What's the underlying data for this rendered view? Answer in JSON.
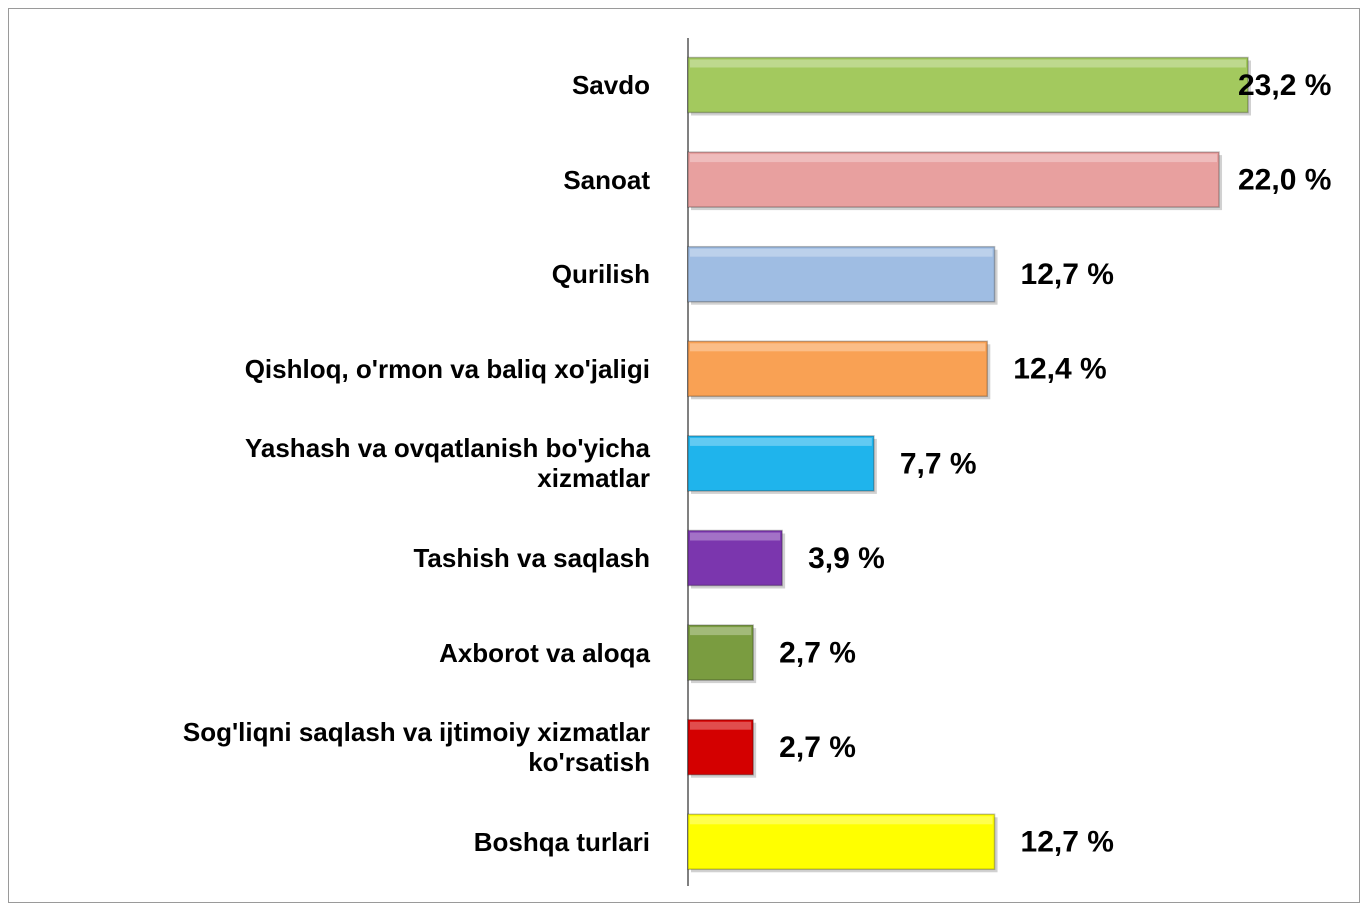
{
  "chart_data": {
    "type": "bar",
    "orientation": "horizontal",
    "categories": [
      "Savdo",
      "Sanoat",
      "Qurilish",
      "Qishloq, o'rmon va baliq xo'jaligi",
      "Yashash va ovqatlanish bo'yicha\nxizmatlar",
      "Tashish va saqlash",
      "Axborot va aloqa",
      "Sog'liqni saqlash va ijtimoiy xizmatlar\nko'rsatish",
      "Boshqa turlari"
    ],
    "values": [
      23.2,
      22.0,
      12.7,
      12.4,
      7.7,
      3.9,
      2.7,
      2.7,
      12.7
    ],
    "value_labels": [
      "23,2 %",
      "22,0 %",
      "12,7 %",
      "12,4 %",
      "7,7 %",
      "3,9 %",
      "2,7 %",
      "2,7 %",
      "12,7 %"
    ],
    "colors": [
      "#a3c95e",
      "#e8a09f",
      "#9fbde3",
      "#f9a154",
      "#1fb4ec",
      "#7b36ae",
      "#7a9c40",
      "#d40000",
      "#ffff00"
    ]
  }
}
